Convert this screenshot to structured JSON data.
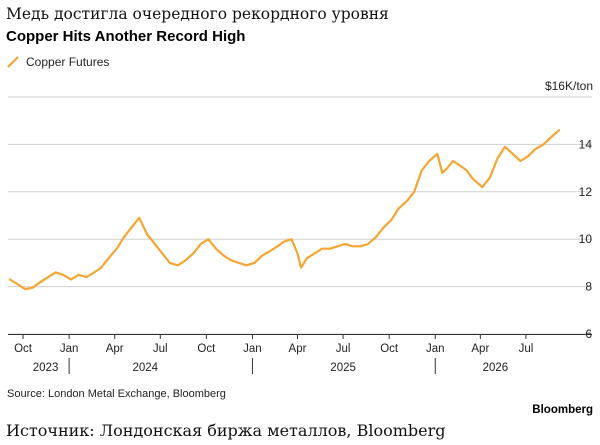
{
  "title_ru": "Медь достигла очередного рекордного уровня",
  "title_en": "Copper Hits Another Record High",
  "legend_label": "Copper Futures",
  "unit_label": "$16K/ton",
  "source": "Source: London Metal Exchange, Bloomberg",
  "brand": "Bloomberg",
  "footer_ru": "Источник: Лондонская биржа металлов, Bloomberg",
  "colors": {
    "series": "#f5a531",
    "grid": "#d0d0d0",
    "axis": "#333333",
    "text": "#222222"
  },
  "chart_data": {
    "type": "line",
    "title": "Copper Hits Another Record High",
    "xlabel": "",
    "ylabel": "",
    "unit": "$16K/ton",
    "ylim": [
      6,
      16
    ],
    "yticks": [
      6,
      8,
      10,
      12,
      14
    ],
    "xlim": [
      "2023-09-01",
      "2026-10-01"
    ],
    "grid": true,
    "legend_position": "top-left",
    "xticks": [
      {
        "date": "2023-10-01",
        "label": "Oct"
      },
      {
        "date": "2024-01-01",
        "label": "Jan"
      },
      {
        "date": "2024-04-01",
        "label": "Apr"
      },
      {
        "date": "2024-07-01",
        "label": "Jul"
      },
      {
        "date": "2024-10-01",
        "label": "Oct"
      },
      {
        "date": "2025-01-01",
        "label": "Jan"
      },
      {
        "date": "2025-04-01",
        "label": "Apr"
      },
      {
        "date": "2025-07-01",
        "label": "Jul"
      },
      {
        "date": "2025-10-01",
        "label": "Oct"
      },
      {
        "date": "2026-01-01",
        "label": "Jan"
      },
      {
        "date": "2026-04-01",
        "label": "Apr"
      },
      {
        "date": "2026-07-01",
        "label": "Jul"
      }
    ],
    "years": [
      {
        "label": "2023",
        "date": "2023-11-15"
      },
      {
        "label": "2024",
        "date": "2024-06-01"
      },
      {
        "label": "2025",
        "date": "2025-07-01"
      },
      {
        "label": "2026",
        "date": "2026-05-01"
      }
    ],
    "year_separators": [
      "2024-01-01",
      "2025-01-01",
      "2026-01-01"
    ],
    "series": [
      {
        "name": "Copper Futures",
        "x": [
          "2023-09-05",
          "2023-09-20",
          "2023-10-05",
          "2023-10-20",
          "2023-11-05",
          "2023-11-20",
          "2023-12-05",
          "2023-12-20",
          "2024-01-05",
          "2024-01-20",
          "2024-02-05",
          "2024-02-20",
          "2024-03-05",
          "2024-03-20",
          "2024-04-05",
          "2024-04-20",
          "2024-05-05",
          "2024-05-20",
          "2024-06-05",
          "2024-06-20",
          "2024-07-05",
          "2024-07-20",
          "2024-08-05",
          "2024-08-20",
          "2024-09-05",
          "2024-09-20",
          "2024-10-05",
          "2024-10-20",
          "2024-11-05",
          "2024-11-20",
          "2024-12-05",
          "2024-12-20",
          "2025-01-05",
          "2025-01-20",
          "2025-02-05",
          "2025-02-20",
          "2025-03-05",
          "2025-03-20",
          "2025-04-01",
          "2025-04-08",
          "2025-04-20",
          "2025-05-05",
          "2025-05-20",
          "2025-06-05",
          "2025-06-20",
          "2025-07-05",
          "2025-07-20",
          "2025-08-05",
          "2025-08-20",
          "2025-09-05",
          "2025-09-20",
          "2025-10-05",
          "2025-10-20",
          "2025-11-05",
          "2025-11-20",
          "2025-12-05",
          "2025-12-20",
          "2026-01-05",
          "2026-01-15",
          "2026-01-25",
          "2026-02-05",
          "2026-02-20",
          "2026-03-05",
          "2026-03-15",
          "2026-03-25",
          "2026-04-05",
          "2026-04-20",
          "2026-05-05",
          "2026-05-20",
          "2026-06-05",
          "2026-06-20",
          "2026-07-05",
          "2026-07-20",
          "2026-08-05",
          "2026-08-20",
          "2026-09-05"
        ],
        "y": [
          8.3,
          8.1,
          7.9,
          7.95,
          8.2,
          8.4,
          8.6,
          8.5,
          8.3,
          8.5,
          8.4,
          8.6,
          8.8,
          9.2,
          9.6,
          10.1,
          10.5,
          10.9,
          10.2,
          9.8,
          9.4,
          9.0,
          8.9,
          9.1,
          9.4,
          9.8,
          10.0,
          9.6,
          9.3,
          9.1,
          9.0,
          8.9,
          9.0,
          9.3,
          9.5,
          9.7,
          9.9,
          10.0,
          9.4,
          8.8,
          9.2,
          9.4,
          9.6,
          9.6,
          9.7,
          9.8,
          9.7,
          9.7,
          9.8,
          10.1,
          10.5,
          10.8,
          11.3,
          11.6,
          12.0,
          12.9,
          13.3,
          13.6,
          12.8,
          13.0,
          13.3,
          13.1,
          12.9,
          12.6,
          12.4,
          12.2,
          12.6,
          13.4,
          13.9,
          13.6,
          13.3,
          13.5,
          13.8,
          14.0,
          14.3,
          14.6
        ]
      }
    ]
  }
}
